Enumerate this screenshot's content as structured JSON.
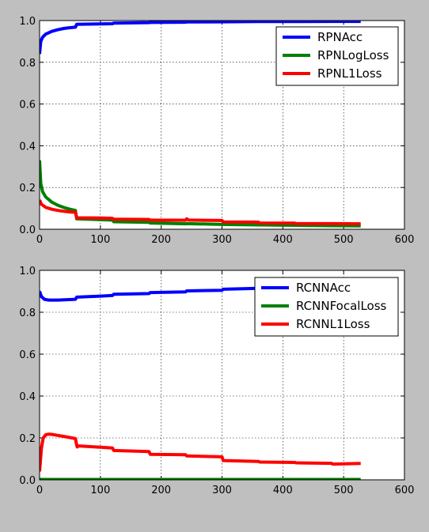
{
  "chart_data": [
    {
      "type": "line",
      "title": "",
      "xlabel": "",
      "ylabel": "",
      "xlim": [
        0,
        600
      ],
      "ylim": [
        0,
        1.0
      ],
      "xticks": [
        "0",
        "100",
        "200",
        "300",
        "400",
        "500",
        "600"
      ],
      "yticks": [
        "0.0",
        "0.2",
        "0.4",
        "0.6",
        "0.8",
        "1.0"
      ],
      "grid": true,
      "legend_position": "top-right",
      "series": [
        {
          "name": "RPNAcc",
          "color": "#0000ff",
          "points": [
            [
              0,
              0.84
            ],
            [
              2,
              0.9
            ],
            [
              5,
              0.92
            ],
            [
              10,
              0.935
            ],
            [
              20,
              0.948
            ],
            [
              30,
              0.956
            ],
            [
              40,
              0.962
            ],
            [
              50,
              0.966
            ],
            [
              59,
              0.968
            ],
            [
              61,
              0.982
            ],
            [
              100,
              0.984
            ],
            [
              120,
              0.985
            ],
            [
              122,
              0.988
            ],
            [
              180,
              0.99
            ],
            [
              182,
              0.991
            ],
            [
              240,
              0.992
            ],
            [
              242,
              0.993
            ],
            [
              300,
              0.994
            ],
            [
              360,
              0.995
            ],
            [
              420,
              0.995
            ],
            [
              480,
              0.996
            ],
            [
              528,
              0.996
            ]
          ]
        },
        {
          "name": "RPNLogLoss",
          "color": "#008000",
          "points": [
            [
              0,
              0.33
            ],
            [
              2,
              0.22
            ],
            [
              5,
              0.18
            ],
            [
              10,
              0.155
            ],
            [
              20,
              0.13
            ],
            [
              30,
              0.115
            ],
            [
              40,
              0.104
            ],
            [
              50,
              0.096
            ],
            [
              59,
              0.09
            ],
            [
              61,
              0.05
            ],
            [
              100,
              0.046
            ],
            [
              120,
              0.044
            ],
            [
              122,
              0.036
            ],
            [
              180,
              0.033
            ],
            [
              182,
              0.03
            ],
            [
              240,
              0.026
            ],
            [
              242,
              0.027
            ],
            [
              300,
              0.023
            ],
            [
              360,
              0.021
            ],
            [
              420,
              0.019
            ],
            [
              480,
              0.017
            ],
            [
              528,
              0.016
            ]
          ]
        },
        {
          "name": "RPNL1Loss",
          "color": "#ff0000",
          "points": [
            [
              0,
              0.14
            ],
            [
              3,
              0.12
            ],
            [
              10,
              0.105
            ],
            [
              20,
              0.096
            ],
            [
              30,
              0.09
            ],
            [
              40,
              0.086
            ],
            [
              50,
              0.083
            ],
            [
              59,
              0.081
            ],
            [
              61,
              0.055
            ],
            [
              100,
              0.054
            ],
            [
              120,
              0.052
            ],
            [
              122,
              0.048
            ],
            [
              180,
              0.047
            ],
            [
              182,
              0.044
            ],
            [
              240,
              0.043
            ],
            [
              242,
              0.05
            ],
            [
              245,
              0.044
            ],
            [
              300,
              0.042
            ],
            [
              302,
              0.035
            ],
            [
              360,
              0.034
            ],
            [
              362,
              0.03
            ],
            [
              420,
              0.029
            ],
            [
              422,
              0.027
            ],
            [
              480,
              0.027
            ],
            [
              528,
              0.026
            ]
          ]
        }
      ]
    },
    {
      "type": "line",
      "title": "",
      "xlabel": "",
      "ylabel": "",
      "xlim": [
        0,
        600
      ],
      "ylim": [
        0,
        1.0
      ],
      "xticks": [
        "0",
        "100",
        "200",
        "300",
        "400",
        "500",
        "600"
      ],
      "yticks": [
        "0.0",
        "0.2",
        "0.4",
        "0.6",
        "0.8",
        "1.0"
      ],
      "grid": true,
      "legend_position": "top-right",
      "series": [
        {
          "name": "RCNNAcc",
          "color": "#0000ff",
          "points": [
            [
              0,
              0.9
            ],
            [
              3,
              0.875
            ],
            [
              8,
              0.862
            ],
            [
              15,
              0.858
            ],
            [
              30,
              0.858
            ],
            [
              59,
              0.862
            ],
            [
              61,
              0.872
            ],
            [
              100,
              0.877
            ],
            [
              120,
              0.88
            ],
            [
              122,
              0.886
            ],
            [
              180,
              0.889
            ],
            [
              182,
              0.894
            ],
            [
              240,
              0.897
            ],
            [
              242,
              0.902
            ],
            [
              300,
              0.905
            ],
            [
              302,
              0.91
            ],
            [
              360,
              0.914
            ],
            [
              362,
              0.918
            ],
            [
              420,
              0.922
            ],
            [
              422,
              0.925
            ],
            [
              480,
              0.928
            ],
            [
              528,
              0.932
            ]
          ]
        },
        {
          "name": "RCNNFocalLoss",
          "color": "#008000",
          "points": [
            [
              0,
              0.002
            ],
            [
              528,
              0.002
            ]
          ]
        },
        {
          "name": "RCNNL1Loss",
          "color": "#ff0000",
          "points": [
            [
              0,
              0.04
            ],
            [
              3,
              0.15
            ],
            [
              6,
              0.2
            ],
            [
              10,
              0.215
            ],
            [
              15,
              0.218
            ],
            [
              20,
              0.217
            ],
            [
              30,
              0.212
            ],
            [
              40,
              0.207
            ],
            [
              50,
              0.202
            ],
            [
              59,
              0.197
            ],
            [
              61,
              0.165
            ],
            [
              62,
              0.157
            ],
            [
              64,
              0.162
            ],
            [
              100,
              0.156
            ],
            [
              120,
              0.152
            ],
            [
              122,
              0.14
            ],
            [
              180,
              0.135
            ],
            [
              182,
              0.122
            ],
            [
              240,
              0.12
            ],
            [
              242,
              0.114
            ],
            [
              300,
              0.11
            ],
            [
              302,
              0.092
            ],
            [
              360,
              0.088
            ],
            [
              362,
              0.085
            ],
            [
              420,
              0.083
            ],
            [
              422,
              0.081
            ],
            [
              480,
              0.079
            ],
            [
              482,
              0.075
            ],
            [
              528,
              0.078
            ]
          ]
        }
      ]
    }
  ]
}
